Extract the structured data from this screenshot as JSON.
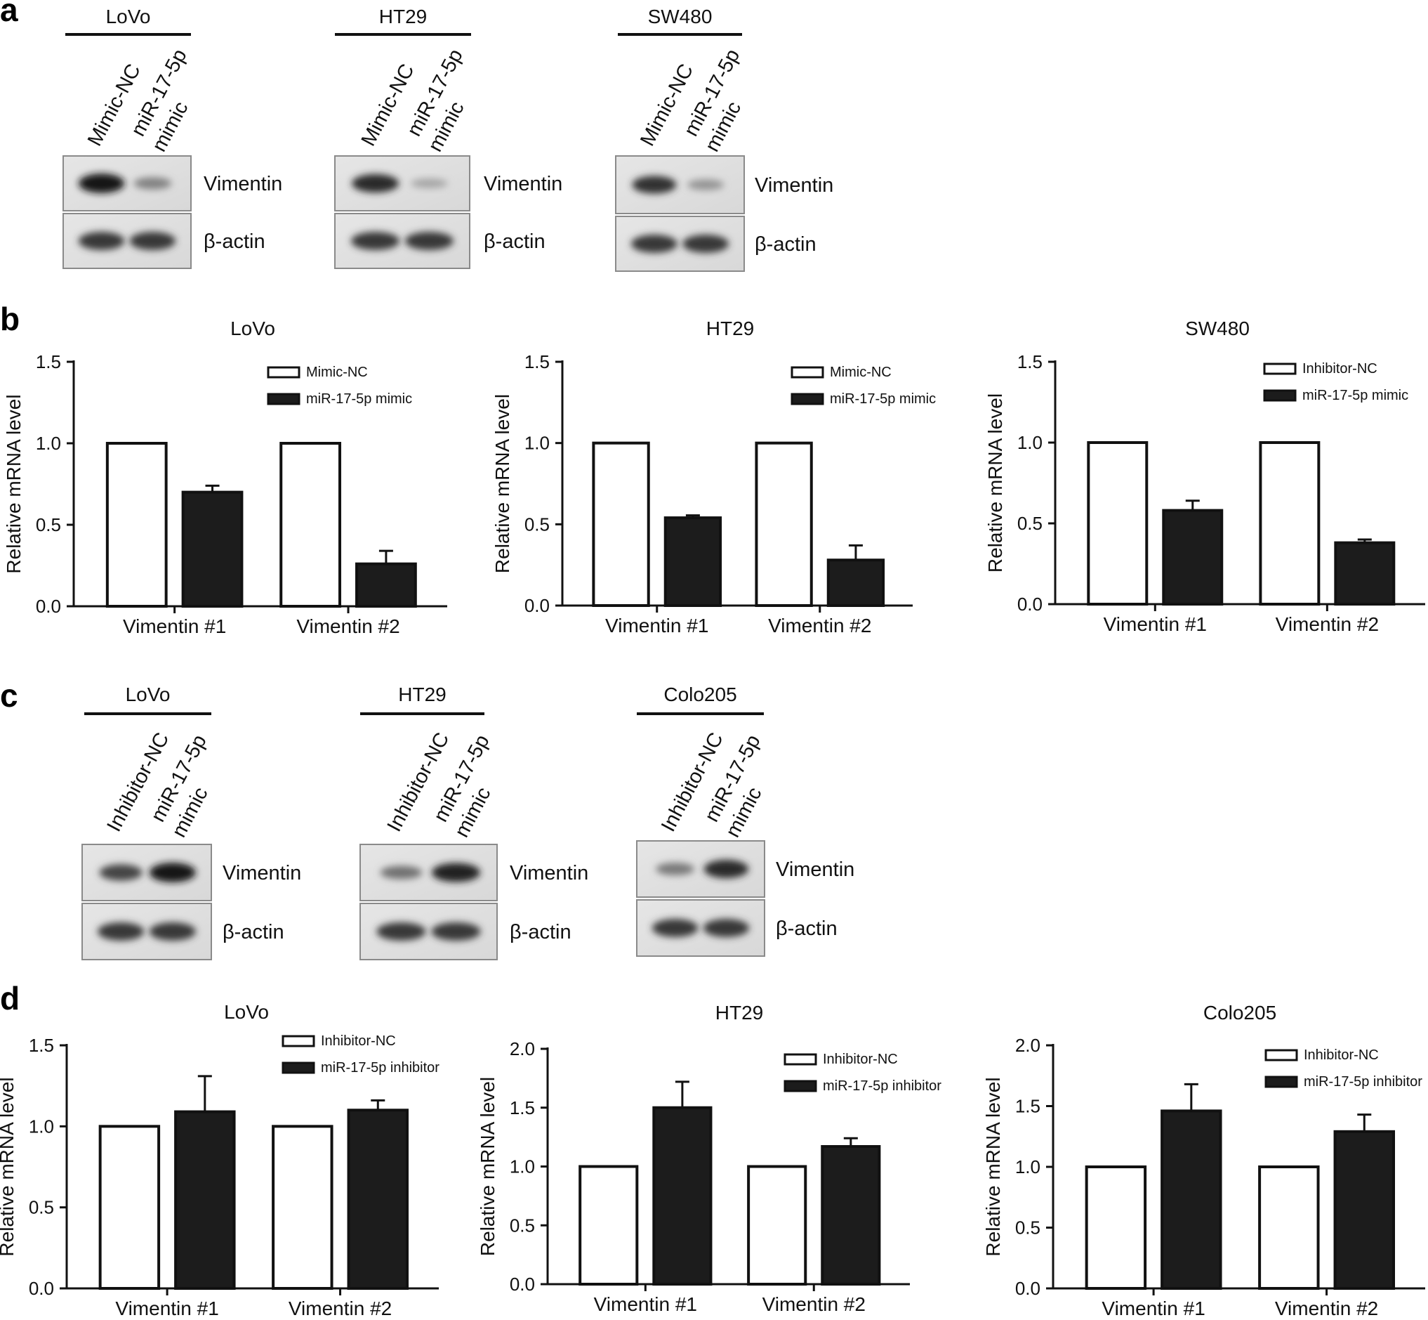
{
  "panels": {
    "a": "a",
    "b": "b",
    "c": "c",
    "d": "d"
  },
  "blots_a": [
    {
      "cell": "LoVo",
      "lane1": "Mimic-NC",
      "lane2a": "miR-17-5p",
      "lane2b": "mimic",
      "prot1": "Vimentin",
      "prot2": "β-actin",
      "band_intensity": [
        1.0,
        0.4
      ]
    },
    {
      "cell": "HT29",
      "lane1": "Mimic-NC",
      "lane2a": "miR-17-5p",
      "lane2b": "mimic",
      "prot1": "Vimentin",
      "prot2": "β-actin",
      "band_intensity": [
        0.9,
        0.2
      ]
    },
    {
      "cell": "SW480",
      "lane1": "Mimic-NC",
      "lane2a": "miR-17-5p",
      "lane2b": "mimic",
      "prot1": "Vimentin",
      "prot2": "β-actin",
      "band_intensity": [
        0.85,
        0.3
      ]
    }
  ],
  "blots_c": [
    {
      "cell": "LoVo",
      "lane1": "Inhibitor-NC",
      "lane2a": "miR-17-5p",
      "lane2b": "mimic",
      "prot1": "Vimentin",
      "prot2": "β-actin",
      "band_intensity": [
        0.75,
        1.0
      ]
    },
    {
      "cell": "HT29",
      "lane1": "Inhibitor-NC",
      "lane2a": "miR-17-5p",
      "lane2b": "mimic",
      "prot1": "Vimentin",
      "prot2": "β-actin",
      "band_intensity": [
        0.5,
        0.95
      ]
    },
    {
      "cell": "Colo205",
      "lane1": "Inhibitor-NC",
      "lane2a": "miR-17-5p",
      "lane2b": "mimic",
      "prot1": "Vimentin",
      "prot2": "β-actin",
      "band_intensity": [
        0.45,
        0.9
      ]
    }
  ],
  "chart_data": [
    {
      "panel": "b",
      "type": "bar",
      "title": "LoVo",
      "ylabel": "Relative mRNA level",
      "categories": [
        "Vimentin #1",
        "Vimentin #2"
      ],
      "ylim": [
        0,
        1.5
      ],
      "yticks": [
        "0.0",
        "0.5",
        "1.0",
        "1.5"
      ],
      "series": [
        {
          "name": "Mimic-NC",
          "values": [
            1.0,
            1.0
          ],
          "errors": [
            0,
            0
          ],
          "fill": "#ffffff"
        },
        {
          "name": "miR-17-5p mimic",
          "values": [
            0.7,
            0.26
          ],
          "errors": [
            0.04,
            0.08
          ],
          "fill": "#1c1c1c"
        }
      ]
    },
    {
      "panel": "b",
      "type": "bar",
      "title": "HT29",
      "ylabel": "Relative mRNA level",
      "categories": [
        "Vimentin #1",
        "Vimentin #2"
      ],
      "ylim": [
        0,
        1.5
      ],
      "yticks": [
        "0.0",
        "0.5",
        "1.0",
        "1.5"
      ],
      "series": [
        {
          "name": "Mimic-NC",
          "values": [
            1.0,
            1.0
          ],
          "errors": [
            0,
            0
          ],
          "fill": "#ffffff"
        },
        {
          "name": "miR-17-5p mimic",
          "values": [
            0.54,
            0.28
          ],
          "errors": [
            0.015,
            0.09
          ],
          "fill": "#1c1c1c"
        }
      ]
    },
    {
      "panel": "b",
      "type": "bar",
      "title": "SW480",
      "ylabel": "Relative mRNA level",
      "categories": [
        "Vimentin #1",
        "Vimentin #2"
      ],
      "ylim": [
        0,
        1.5
      ],
      "yticks": [
        "0.0",
        "0.5",
        "1.0",
        "1.5"
      ],
      "series": [
        {
          "name": "Inhibitor-NC",
          "values": [
            1.0,
            1.0
          ],
          "errors": [
            0,
            0
          ],
          "fill": "#ffffff"
        },
        {
          "name": "miR-17-5p mimic",
          "values": [
            0.58,
            0.38
          ],
          "errors": [
            0.06,
            0.02
          ],
          "fill": "#1c1c1c"
        }
      ]
    },
    {
      "panel": "d",
      "type": "bar",
      "title": "LoVo",
      "ylabel": "Relative mRNA level",
      "categories": [
        "Vimentin #1",
        "Vimentin #2"
      ],
      "ylim": [
        0,
        1.5
      ],
      "yticks": [
        "0.0",
        "0.5",
        "1.0",
        "1.5"
      ],
      "series": [
        {
          "name": "Inhibitor-NC",
          "values": [
            1.0,
            1.0
          ],
          "errors": [
            0,
            0
          ],
          "fill": "#ffffff"
        },
        {
          "name": "miR-17-5p inhibitor",
          "values": [
            1.09,
            1.1
          ],
          "errors": [
            0.22,
            0.06
          ],
          "fill": "#1c1c1c"
        }
      ]
    },
    {
      "panel": "d",
      "type": "bar",
      "title": "HT29",
      "ylabel": "Relative mRNA level",
      "categories": [
        "Vimentin #1",
        "Vimentin #2"
      ],
      "ylim": [
        0,
        2.0
      ],
      "yticks": [
        "0.0",
        "0.5",
        "1.0",
        "1.5",
        "2.0"
      ],
      "series": [
        {
          "name": "Inhibitor-NC",
          "values": [
            1.0,
            1.0
          ],
          "errors": [
            0,
            0
          ],
          "fill": "#ffffff"
        },
        {
          "name": "miR-17-5p inhibitor",
          "values": [
            1.5,
            1.17
          ],
          "errors": [
            0.22,
            0.07
          ],
          "fill": "#1c1c1c"
        }
      ]
    },
    {
      "panel": "d",
      "type": "bar",
      "title": "Colo205",
      "ylabel": "Relative mRNA level",
      "categories": [
        "Vimentin #1",
        "Vimentin #2"
      ],
      "ylim": [
        0,
        2.0
      ],
      "yticks": [
        "0.0",
        "0.5",
        "1.0",
        "1.5",
        "2.0"
      ],
      "series": [
        {
          "name": "Inhibitor-NC",
          "values": [
            1.0,
            1.0
          ],
          "errors": [
            0,
            0
          ],
          "fill": "#ffffff"
        },
        {
          "name": "miR-17-5p inhibitor",
          "values": [
            1.46,
            1.29
          ],
          "errors": [
            0.22,
            0.14
          ],
          "fill": "#1c1c1c"
        }
      ]
    }
  ]
}
